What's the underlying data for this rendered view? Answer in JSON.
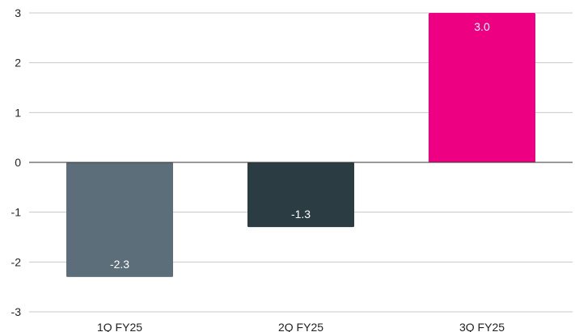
{
  "chart_data": {
    "type": "bar",
    "title": "",
    "xlabel": "",
    "ylabel": "",
    "categories": [
      "1Q FY25",
      "2Q FY25",
      "3Q FY25"
    ],
    "values": [
      -2.3,
      -1.3,
      3.0
    ],
    "data_labels": [
      "-2.3",
      "-1.3",
      "3.0"
    ],
    "colors": [
      "#5b6e79",
      "#2b3c43",
      "#ee0082"
    ],
    "ylim": [
      -3,
      3
    ],
    "yticks": [
      3,
      2,
      1,
      0,
      -1,
      -2,
      -3
    ],
    "grid": true,
    "legend": "none"
  }
}
